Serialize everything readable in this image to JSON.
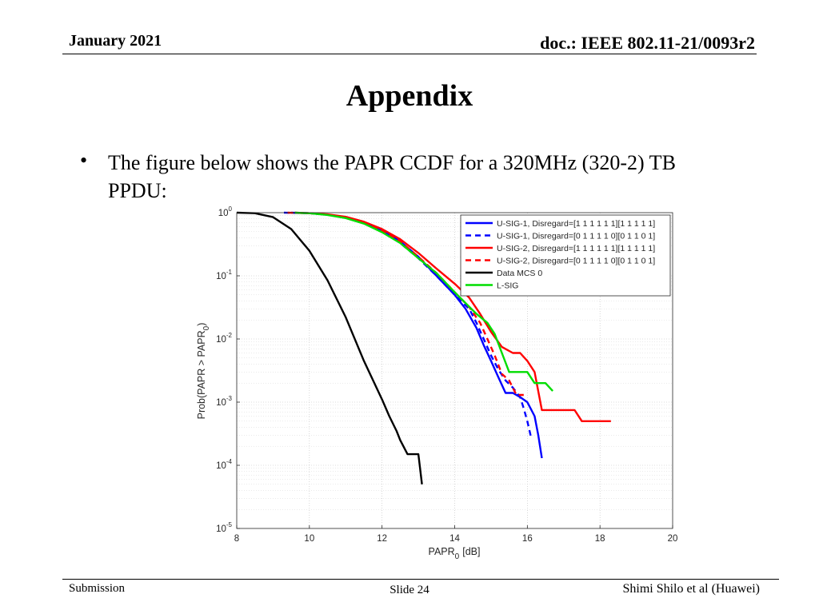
{
  "header": {
    "date": "January 2021",
    "doc": "doc.: IEEE 802.11-21/0093r2"
  },
  "slide_title": "Appendix",
  "bullet": {
    "text": "The figure below shows the PAPR CCDF for a 320MHz (320-2) TB PPDU:"
  },
  "footer": {
    "left": "Submission",
    "center": "Slide 24",
    "right": "Shimi Shilo et al (Huawei)"
  },
  "chart_data": {
    "type": "line",
    "xlabel": "PAPR",
    "xlabel_sub": "0",
    "xlabel_unit": "[dB]",
    "ylabel": "Prob(PAPR > PAPR",
    "ylabel_sub": "0",
    "ylabel_close": ")",
    "xlim": [
      8,
      20
    ],
    "ylim_exp": [
      -5,
      0
    ],
    "yscale": "log",
    "xticks": [
      "8",
      "10",
      "12",
      "14",
      "16",
      "18",
      "20"
    ],
    "yticks": [
      {
        "base": "10",
        "exp": "0"
      },
      {
        "base": "10",
        "exp": "-1"
      },
      {
        "base": "10",
        "exp": "-2"
      },
      {
        "base": "10",
        "exp": "-3"
      },
      {
        "base": "10",
        "exp": "-4"
      },
      {
        "base": "10",
        "exp": "-5"
      }
    ],
    "grid": true,
    "legend_position": "top-right",
    "series": [
      {
        "name": "U-SIG-1, Disregard=[1 1 1 1 1 1][1 1 1 1 1]",
        "color": "#0000ff",
        "dash": "solid",
        "points": [
          [
            9.5,
            1.0
          ],
          [
            10,
            0.98
          ],
          [
            10.5,
            0.93
          ],
          [
            11,
            0.84
          ],
          [
            11.5,
            0.7
          ],
          [
            12,
            0.52
          ],
          [
            12.5,
            0.35
          ],
          [
            13,
            0.2
          ],
          [
            13.5,
            0.1
          ],
          [
            14,
            0.05
          ],
          [
            14.3,
            0.03
          ],
          [
            14.6,
            0.015
          ],
          [
            14.8,
            0.008
          ],
          [
            15.0,
            0.0045
          ],
          [
            15.2,
            0.0025
          ],
          [
            15.4,
            0.0014
          ],
          [
            15.6,
            0.0014
          ],
          [
            15.8,
            0.0012
          ],
          [
            16.0,
            0.001
          ],
          [
            16.2,
            0.0006
          ],
          [
            16.3,
            0.0003
          ],
          [
            16.4,
            0.00013
          ]
        ]
      },
      {
        "name": "U-SIG-1, Disregard=[0 1 1 1 1 0][0 1 1 0 1]",
        "color": "#0000ff",
        "dash": "dashed",
        "points": [
          [
            9.3,
            1.0
          ],
          [
            10,
            0.98
          ],
          [
            10.5,
            0.93
          ],
          [
            11,
            0.83
          ],
          [
            11.5,
            0.69
          ],
          [
            12,
            0.51
          ],
          [
            12.5,
            0.33
          ],
          [
            13,
            0.19
          ],
          [
            13.5,
            0.1
          ],
          [
            14,
            0.05
          ],
          [
            14.4,
            0.03
          ],
          [
            14.6,
            0.018
          ],
          [
            14.8,
            0.01
          ],
          [
            15.0,
            0.0055
          ],
          [
            15.2,
            0.0033
          ],
          [
            15.4,
            0.0022
          ],
          [
            15.6,
            0.0017
          ],
          [
            15.8,
            0.0012
          ],
          [
            15.9,
            0.0008
          ],
          [
            16.0,
            0.0005
          ],
          [
            16.1,
            0.00028
          ]
        ]
      },
      {
        "name": "U-SIG-2, Disregard=[1 1 1 1 1 1][1 1 1 1 1]",
        "color": "#ff0000",
        "dash": "solid",
        "points": [
          [
            9.6,
            1.0
          ],
          [
            10,
            0.98
          ],
          [
            10.5,
            0.94
          ],
          [
            11,
            0.86
          ],
          [
            11.5,
            0.72
          ],
          [
            12,
            0.55
          ],
          [
            12.5,
            0.38
          ],
          [
            13,
            0.23
          ],
          [
            13.5,
            0.13
          ],
          [
            14,
            0.075
          ],
          [
            14.4,
            0.045
          ],
          [
            14.7,
            0.025
          ],
          [
            15.0,
            0.013
          ],
          [
            15.3,
            0.0075
          ],
          [
            15.6,
            0.006
          ],
          [
            15.8,
            0.006
          ],
          [
            16.0,
            0.0045
          ],
          [
            16.2,
            0.003
          ],
          [
            16.4,
            0.00075
          ],
          [
            17.0,
            0.00075
          ],
          [
            17.3,
            0.00075
          ],
          [
            17.5,
            0.0005
          ],
          [
            18.0,
            0.0005
          ],
          [
            18.3,
            0.0005
          ]
        ]
      },
      {
        "name": "U-SIG-2, Disregard=[0 1 1 1 1 0][0 1 1 0 1]",
        "color": "#ff0000",
        "dash": "dashed",
        "points": [
          [
            9.4,
            1.0
          ],
          [
            10,
            0.98
          ],
          [
            10.5,
            0.93
          ],
          [
            11,
            0.84
          ],
          [
            11.5,
            0.7
          ],
          [
            12,
            0.52
          ],
          [
            12.5,
            0.35
          ],
          [
            13,
            0.2
          ],
          [
            13.5,
            0.11
          ],
          [
            14,
            0.055
          ],
          [
            14.4,
            0.032
          ],
          [
            14.7,
            0.018
          ],
          [
            14.9,
            0.01
          ],
          [
            15.1,
            0.0055
          ],
          [
            15.3,
            0.0028
          ],
          [
            15.5,
            0.0022
          ],
          [
            15.7,
            0.0013
          ],
          [
            15.9,
            0.0013
          ]
        ]
      },
      {
        "name": "Data MCS 0",
        "color": "#000000",
        "dash": "solid",
        "points": [
          [
            8.0,
            1.0
          ],
          [
            8.5,
            0.98
          ],
          [
            9.0,
            0.85
          ],
          [
            9.5,
            0.55
          ],
          [
            10.0,
            0.25
          ],
          [
            10.5,
            0.085
          ],
          [
            11.0,
            0.022
          ],
          [
            11.5,
            0.0045
          ],
          [
            12.0,
            0.0011
          ],
          [
            12.2,
            0.0006
          ],
          [
            12.4,
            0.00035
          ],
          [
            12.5,
            0.00025
          ],
          [
            12.7,
            0.00015
          ],
          [
            13.0,
            0.00015
          ],
          [
            13.1,
            5e-05
          ]
        ]
      },
      {
        "name": "L-SIG",
        "color": "#00dd00",
        "dash": "solid",
        "points": [
          [
            9.6,
            1.0
          ],
          [
            10,
            0.98
          ],
          [
            10.5,
            0.92
          ],
          [
            11,
            0.82
          ],
          [
            11.5,
            0.67
          ],
          [
            12,
            0.49
          ],
          [
            12.5,
            0.33
          ],
          [
            13,
            0.19
          ],
          [
            13.5,
            0.11
          ],
          [
            14,
            0.055
          ],
          [
            14.3,
            0.037
          ],
          [
            14.6,
            0.025
          ],
          [
            14.9,
            0.018
          ],
          [
            15.1,
            0.012
          ],
          [
            15.3,
            0.006
          ],
          [
            15.5,
            0.003
          ],
          [
            16.0,
            0.003
          ],
          [
            16.2,
            0.002
          ],
          [
            16.5,
            0.002
          ],
          [
            16.7,
            0.0015
          ]
        ]
      }
    ]
  }
}
